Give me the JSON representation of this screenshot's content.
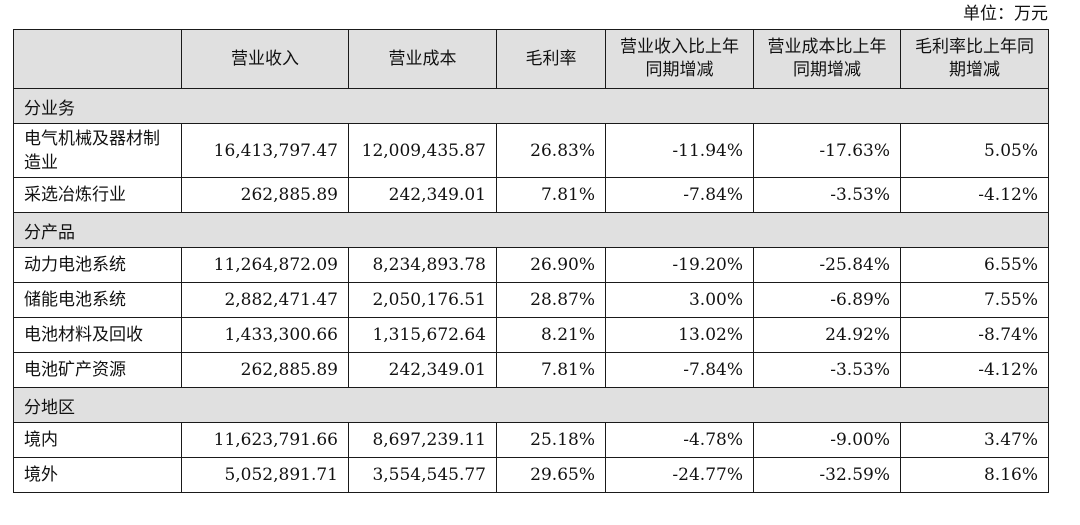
{
  "unit_label": "单位：万元",
  "table": {
    "headers": [
      "",
      "营业收入",
      "营业成本",
      "毛利率",
      "营业收入比上年同期增减",
      "营业成本比上年同期增减",
      "毛利率比上年同期增减"
    ],
    "sections": [
      {
        "title": "分业务",
        "rows": [
          [
            "电气机械及器材制造业",
            "16,413,797.47",
            "12,009,435.87",
            "26.83%",
            "-11.94%",
            "-17.63%",
            "5.05%"
          ],
          [
            "采选冶炼行业",
            "262,885.89",
            "242,349.01",
            "7.81%",
            "-7.84%",
            "-3.53%",
            "-4.12%"
          ]
        ]
      },
      {
        "title": "分产品",
        "rows": [
          [
            "动力电池系统",
            "11,264,872.09",
            "8,234,893.78",
            "26.90%",
            "-19.20%",
            "-25.84%",
            "6.55%"
          ],
          [
            "储能电池系统",
            "2,882,471.47",
            "2,050,176.51",
            "28.87%",
            "3.00%",
            "-6.89%",
            "7.55%"
          ],
          [
            "电池材料及回收",
            "1,433,300.66",
            "1,315,672.64",
            "8.21%",
            "13.02%",
            "24.92%",
            "-8.74%"
          ],
          [
            "电池矿产资源",
            "262,885.89",
            "242,349.01",
            "7.81%",
            "-7.84%",
            "-3.53%",
            "-4.12%"
          ]
        ]
      },
      {
        "title": "分地区",
        "rows": [
          [
            "境内",
            "11,623,791.66",
            "8,697,239.11",
            "25.18%",
            "-4.78%",
            "-9.00%",
            "3.47%"
          ],
          [
            "境外",
            "5,052,891.71",
            "3,554,545.77",
            "29.65%",
            "-24.77%",
            "-32.59%",
            "8.16%"
          ]
        ]
      }
    ]
  }
}
